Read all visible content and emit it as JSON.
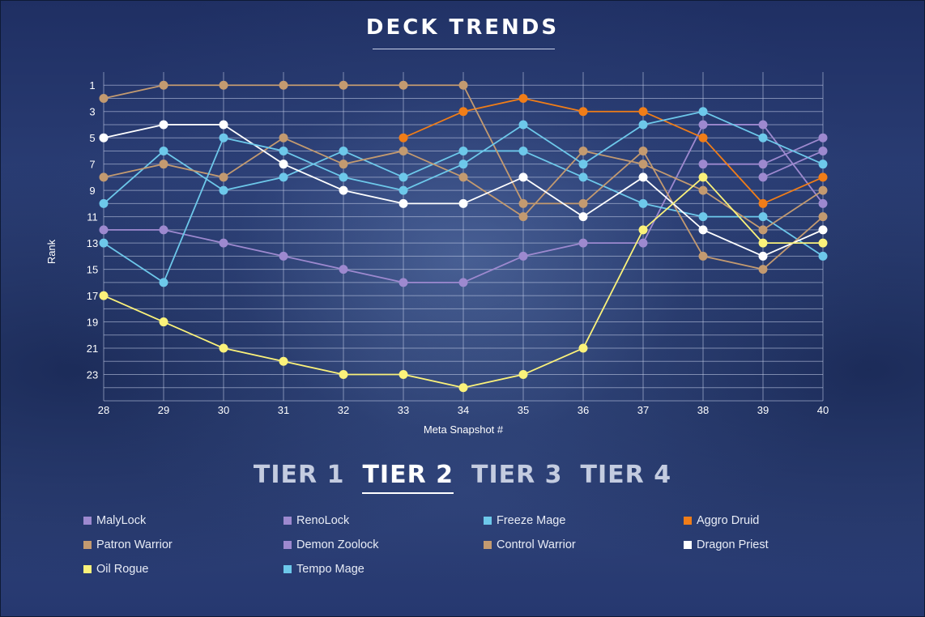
{
  "header": {
    "title": "DECK TRENDS"
  },
  "tabs": [
    {
      "label": "TIER 1",
      "active": false
    },
    {
      "label": "TIER 2",
      "active": true
    },
    {
      "label": "TIER 3",
      "active": false
    },
    {
      "label": "TIER 4",
      "active": false
    }
  ],
  "chart_data": {
    "type": "line",
    "title": "DECK TRENDS",
    "xlabel": "Meta Snapshot #",
    "ylabel": "Rank",
    "x": [
      28,
      29,
      30,
      31,
      32,
      33,
      34,
      35,
      36,
      37,
      38,
      39,
      40
    ],
    "ylim": [
      0,
      25
    ],
    "y_inverted": true,
    "y_ticks": [
      1,
      3,
      5,
      7,
      9,
      11,
      13,
      15,
      17,
      19,
      21,
      23
    ],
    "grid": true,
    "legend_position": "bottom",
    "series": [
      {
        "name": "MalyLock",
        "color": "#9d89cf",
        "values": [
          12,
          12,
          13,
          14,
          15,
          16,
          16,
          14,
          13,
          13,
          4,
          4,
          10
        ]
      },
      {
        "name": "RenoLock",
        "color": "#9d89cf",
        "values": [
          null,
          null,
          null,
          null,
          null,
          null,
          null,
          null,
          null,
          null,
          7,
          7,
          5
        ]
      },
      {
        "name": "Freeze Mage",
        "color": "#6dc8ea",
        "values": [
          10,
          6,
          9,
          8,
          6,
          8,
          6,
          6,
          8,
          10,
          11,
          11,
          14
        ]
      },
      {
        "name": "Aggro Druid",
        "color": "#f07d18",
        "values": [
          null,
          null,
          null,
          null,
          null,
          5,
          3,
          2,
          3,
          3,
          5,
          10,
          8
        ]
      },
      {
        "name": "Patron Warrior",
        "color": "#c39a70",
        "values": [
          2,
          1,
          1,
          1,
          1,
          1,
          1,
          10,
          10,
          6,
          14,
          15,
          11
        ]
      },
      {
        "name": "Demon Zoolock",
        "color": "#9d89cf",
        "values": [
          null,
          null,
          null,
          null,
          null,
          null,
          null,
          null,
          null,
          null,
          null,
          8,
          6
        ]
      },
      {
        "name": "Control Warrior",
        "color": "#c39a70",
        "values": [
          8,
          7,
          8,
          5,
          7,
          6,
          8,
          11,
          6,
          7,
          9,
          12,
          9
        ]
      },
      {
        "name": "Dragon Priest",
        "color": "#ffffff",
        "values": [
          5,
          4,
          4,
          7,
          9,
          10,
          10,
          8,
          11,
          8,
          12,
          14,
          12
        ]
      },
      {
        "name": "Oil Rogue",
        "color": "#fbf27a",
        "values": [
          17,
          19,
          21,
          22,
          23,
          23,
          24,
          23,
          21,
          12,
          8,
          13,
          13
        ]
      },
      {
        "name": "Tempo Mage",
        "color": "#6dc8ea",
        "values": [
          13,
          16,
          5,
          6,
          8,
          9,
          7,
          4,
          7,
          4,
          3,
          5,
          7
        ]
      }
    ]
  }
}
